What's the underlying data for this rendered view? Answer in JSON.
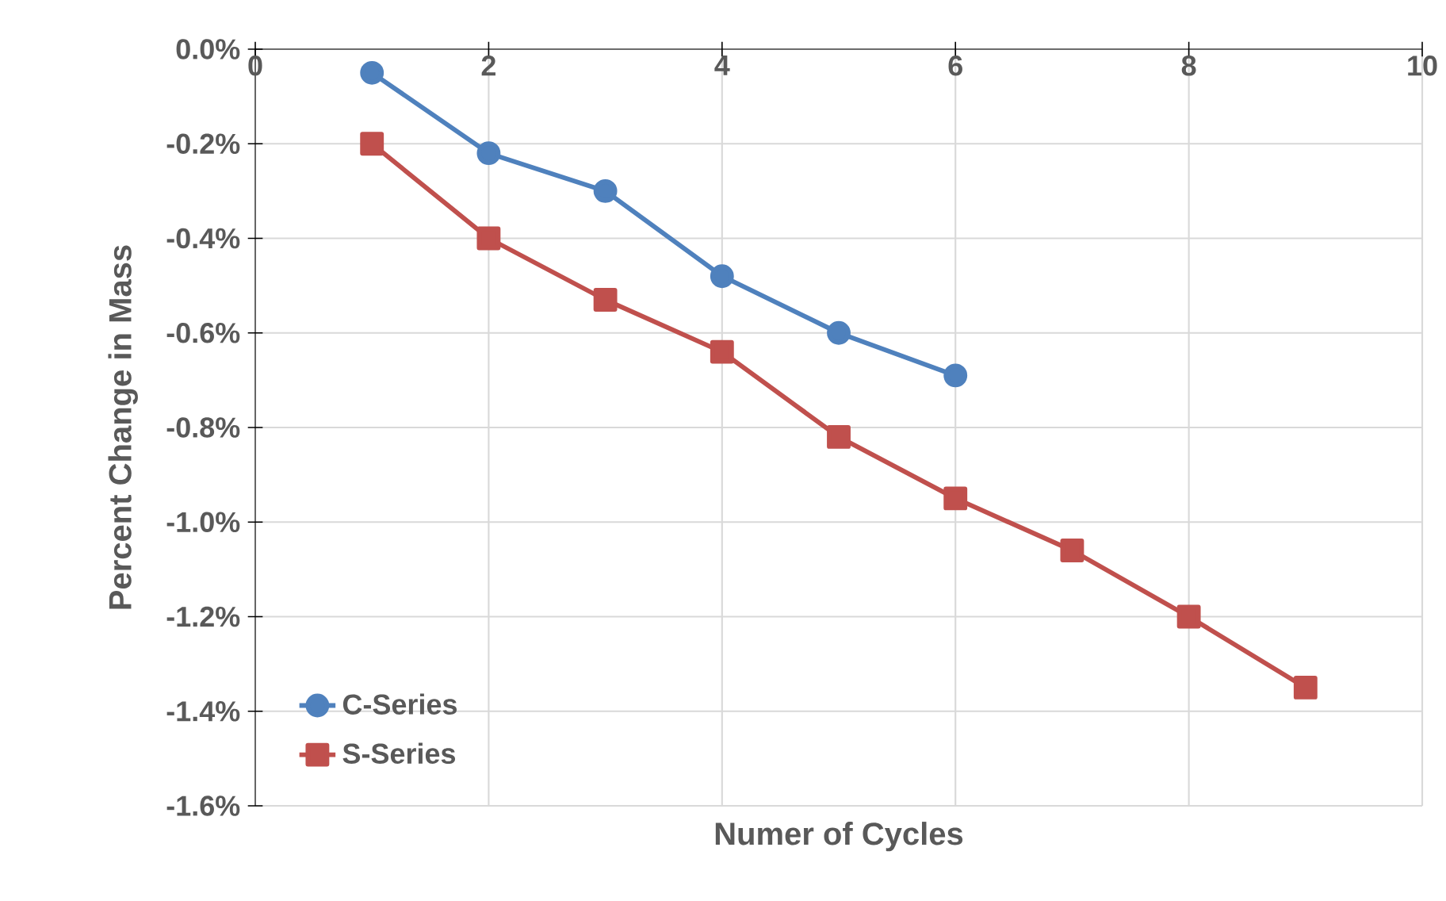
{
  "chart_data": {
    "type": "line",
    "xlabel": "Numer of Cycles",
    "ylabel": "Percent Change in Mass",
    "xlim": [
      0,
      10
    ],
    "xticks": [
      0,
      2,
      4,
      6,
      8,
      10
    ],
    "ylim": [
      -1.6,
      0
    ],
    "yticks": [
      {
        "value": 0,
        "label": "0.0%"
      },
      {
        "value": -0.2,
        "label": "-0.2%"
      },
      {
        "value": -0.4,
        "label": "-0.4%"
      },
      {
        "value": -0.6,
        "label": "-0.6%"
      },
      {
        "value": -0.8,
        "label": "-0.8%"
      },
      {
        "value": -1.0,
        "label": "-1.0%"
      },
      {
        "value": -1.2,
        "label": "-1.2%"
      },
      {
        "value": -1.4,
        "label": "-1.4%"
      },
      {
        "value": -1.6,
        "label": "-1.6%"
      }
    ],
    "grid": true,
    "legend": "bottom left",
    "line_style": "solid",
    "series": [
      {
        "name": "C-Series",
        "color": "#4f81bd",
        "marker": "circle",
        "x": [
          1,
          2,
          3,
          4,
          5,
          6
        ],
        "values": [
          -0.05,
          -0.22,
          -0.3,
          -0.48,
          -0.6,
          -0.69
        ]
      },
      {
        "name": "S-Series",
        "color": "#c0504d",
        "marker": "square",
        "x": [
          1,
          2,
          3,
          4,
          5,
          6,
          7,
          8,
          9
        ],
        "values": [
          -0.2,
          -0.4,
          -0.53,
          -0.64,
          -0.82,
          -0.95,
          -1.06,
          -1.2,
          -1.35
        ]
      }
    ]
  }
}
